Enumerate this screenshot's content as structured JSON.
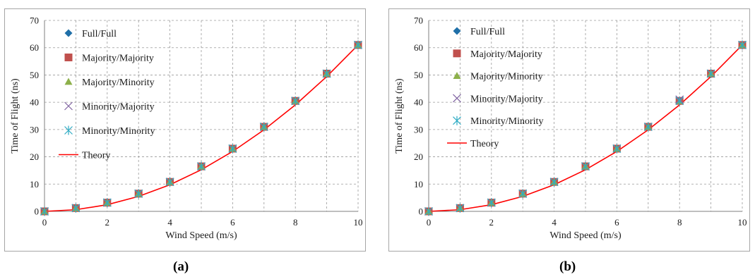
{
  "captions": [
    "(a)",
    "(b)"
  ],
  "chart_data": [
    {
      "type": "scatter",
      "title": "",
      "xlabel": "Wind Speed (m/s)",
      "ylabel": "Time of Flight (ns)",
      "xlim": [
        0,
        10
      ],
      "ylim": [
        0,
        70
      ],
      "xticks": [
        0,
        2,
        4,
        6,
        8,
        10
      ],
      "yticks": [
        0,
        10,
        20,
        30,
        40,
        50,
        60,
        70
      ],
      "grid": true,
      "legend_position": "top-left",
      "x": [
        0,
        1,
        2,
        3,
        4,
        5,
        6,
        7,
        8,
        9,
        10
      ],
      "series": [
        {
          "name": "Full/Full",
          "marker": "diamond",
          "color": "#1f6fa8",
          "values": [
            0,
            1.2,
            3.2,
            6.5,
            10.8,
            16.5,
            23.0,
            31.0,
            40.5,
            50.5,
            61.0
          ]
        },
        {
          "name": "Majority/Majority",
          "marker": "square",
          "color": "#c0504d",
          "values": [
            0,
            1.2,
            3.2,
            6.5,
            10.8,
            16.5,
            23.0,
            31.0,
            40.5,
            50.5,
            61.0
          ]
        },
        {
          "name": "Majority/Minority",
          "marker": "triangle",
          "color": "#8db04a",
          "values": [
            0,
            1.2,
            3.2,
            6.5,
            10.8,
            16.5,
            23.0,
            31.0,
            40.5,
            50.5,
            61.0
          ]
        },
        {
          "name": "Minority/Majority",
          "marker": "x",
          "color": "#8064a2",
          "values": [
            0,
            1.2,
            3.2,
            6.5,
            10.8,
            16.5,
            23.0,
            31.0,
            40.5,
            50.5,
            61.0
          ]
        },
        {
          "name": "Minority/Minority",
          "marker": "star",
          "color": "#2eacc4",
          "values": [
            0,
            1.2,
            3.2,
            6.5,
            10.8,
            16.5,
            23.0,
            31.0,
            40.5,
            50.5,
            61.0
          ]
        },
        {
          "name": "Theory",
          "marker": "line",
          "color": "#ff0000",
          "values": [
            0,
            0.61,
            2.44,
            5.49,
            9.76,
            15.25,
            21.96,
            29.89,
            39.04,
            49.41,
            61.0
          ]
        }
      ]
    },
    {
      "type": "scatter",
      "title": "",
      "xlabel": "Wind Speed (m/s)",
      "ylabel": "Time of Flight (ns)",
      "xlim": [
        0,
        10
      ],
      "ylim": [
        0,
        70
      ],
      "xticks": [
        0,
        2,
        4,
        6,
        8,
        10
      ],
      "yticks": [
        0,
        10,
        20,
        30,
        40,
        50,
        60,
        70
      ],
      "grid": true,
      "legend_position": "top-left",
      "x": [
        0,
        1,
        2,
        3,
        4,
        5,
        6,
        7,
        8,
        9,
        10
      ],
      "series": [
        {
          "name": "Full/Full",
          "marker": "diamond",
          "color": "#1f6fa8",
          "values": [
            0,
            1.2,
            3.2,
            6.5,
            10.8,
            16.5,
            23.0,
            31.0,
            40.5,
            50.5,
            61.0
          ]
        },
        {
          "name": "Majority/Majority",
          "marker": "square",
          "color": "#c0504d",
          "values": [
            0,
            1.2,
            3.2,
            6.5,
            10.8,
            16.5,
            23.0,
            31.0,
            40.5,
            50.5,
            61.0
          ]
        },
        {
          "name": "Majority/Minority",
          "marker": "triangle",
          "color": "#8db04a",
          "values": [
            0,
            1.2,
            3.2,
            6.5,
            10.8,
            16.5,
            23.0,
            31.0,
            40.5,
            50.5,
            61.0
          ]
        },
        {
          "name": "Minority/Majority",
          "marker": "x",
          "color": "#8064a2",
          "values": [
            0,
            1.2,
            3.2,
            6.5,
            10.8,
            16.5,
            23.0,
            31.0,
            41.0,
            50.5,
            61.0
          ]
        },
        {
          "name": "Minority/Minority",
          "marker": "star",
          "color": "#2eacc4",
          "values": [
            0,
            1.2,
            3.2,
            6.5,
            10.8,
            16.5,
            23.0,
            31.0,
            40.5,
            50.5,
            61.0
          ]
        },
        {
          "name": "Theory",
          "marker": "line",
          "color": "#ff0000",
          "values": [
            0,
            0.61,
            2.44,
            5.49,
            9.76,
            15.25,
            21.96,
            29.89,
            39.04,
            49.41,
            61.0
          ]
        }
      ]
    }
  ]
}
